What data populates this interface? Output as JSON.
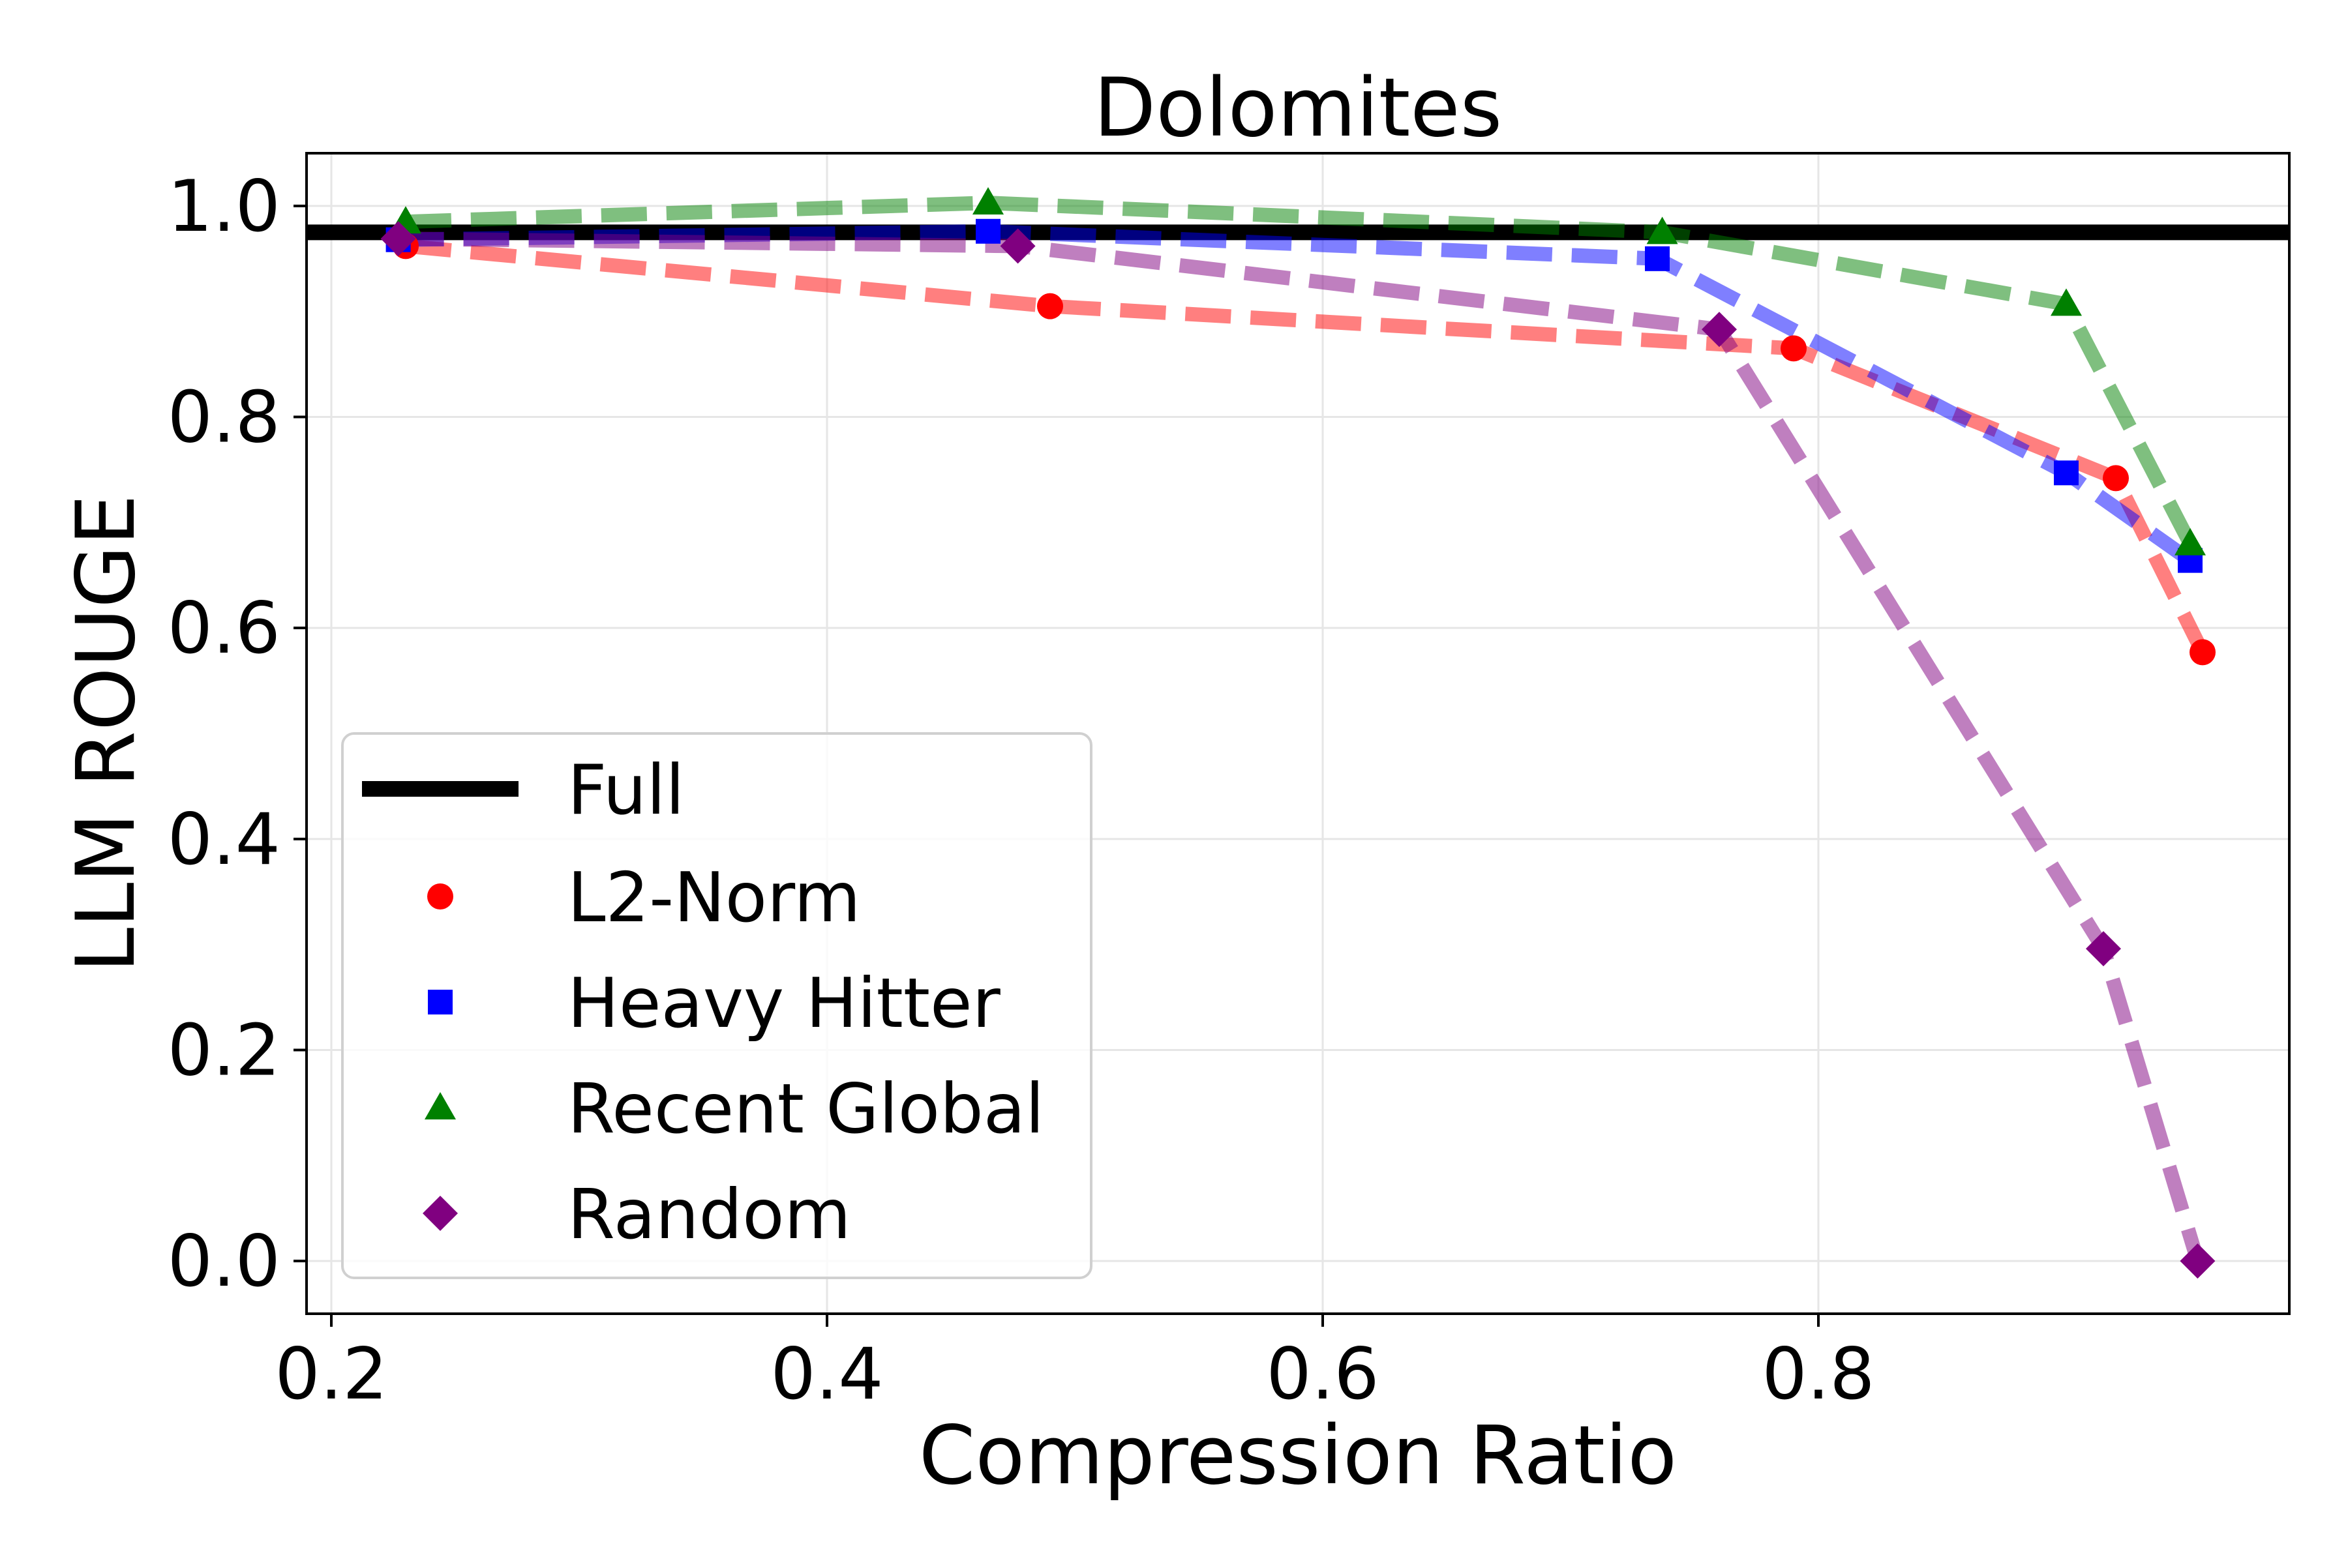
{
  "chart_data": {
    "type": "line",
    "title": "Dolomites",
    "xlabel": "Compression Ratio",
    "ylabel": "LLM ROUGE",
    "xlim": [
      0.19,
      0.99
    ],
    "ylim": [
      -0.05,
      1.05
    ],
    "xticks": [
      0.2,
      0.4,
      0.6,
      0.8
    ],
    "xtick_labels": [
      "0.2",
      "0.4",
      "0.6",
      "0.8"
    ],
    "yticks": [
      0.0,
      0.2,
      0.4,
      0.6,
      0.8,
      1.0
    ],
    "ytick_labels": [
      "0.0",
      "0.2",
      "0.4",
      "0.6",
      "0.8",
      "1.0"
    ],
    "grid": true,
    "legend_position": "lower-left",
    "baseline": {
      "name": "Full",
      "y": 0.975,
      "color": "#000000"
    },
    "series": [
      {
        "name": "L2-Norm",
        "color": "#ff0000",
        "marker": "circle",
        "x": [
          0.23,
          0.49,
          0.79,
          0.92,
          0.955
        ],
        "y": [
          0.962,
          0.905,
          0.865,
          0.742,
          0.577
        ]
      },
      {
        "name": "Heavy Hitter",
        "color": "#0000ff",
        "marker": "square",
        "x": [
          0.227,
          0.465,
          0.735,
          0.9,
          0.95
        ],
        "y": [
          0.968,
          0.976,
          0.95,
          0.747,
          0.664
        ]
      },
      {
        "name": "Recent Global",
        "color": "#008000",
        "marker": "triangle",
        "x": [
          0.23,
          0.465,
          0.737,
          0.9,
          0.95
        ],
        "y": [
          0.985,
          1.003,
          0.975,
          0.907,
          0.68
        ]
      },
      {
        "name": "Random",
        "color": "#800080",
        "marker": "diamond",
        "x": [
          0.227,
          0.477,
          0.76,
          0.915,
          0.953
        ],
        "y": [
          0.969,
          0.962,
          0.883,
          0.296,
          0.0
        ]
      }
    ]
  }
}
